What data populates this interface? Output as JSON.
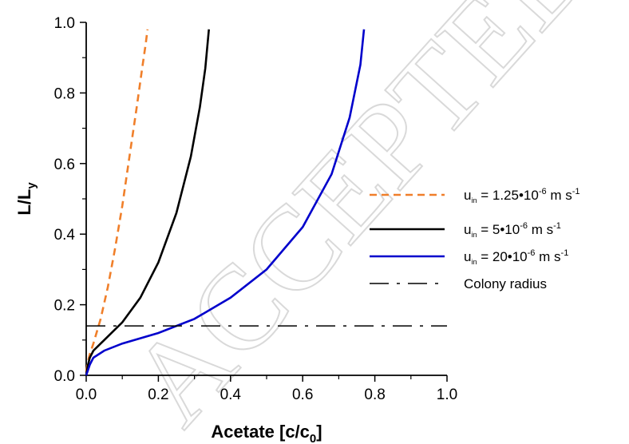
{
  "chart_data": {
    "type": "line",
    "xlabel": "Acetate [c/c0]",
    "ylabel": "L/Ly",
    "xlim": [
      0.0,
      1.0
    ],
    "ylim": [
      0.0,
      1.0
    ],
    "xticks": [
      "0.0",
      "0.2",
      "0.4",
      "0.6",
      "0.8",
      "1.0"
    ],
    "yticks": [
      "0.0",
      "0.2",
      "0.4",
      "0.6",
      "0.8",
      "1.0"
    ],
    "grid": false,
    "legend_position": "right",
    "series": [
      {
        "name": "u_in = 1.25•10^-6 m s^-1",
        "legend": {
          "base": "u",
          "sub": "in",
          "pre": " = 1.25•10",
          "exp1": "-6",
          "mid": " m s",
          "exp2": "-1"
        },
        "color": "#f07f2a",
        "style": "dashed",
        "x": [
          0.0,
          0.005,
          0.01,
          0.02,
          0.04,
          0.06,
          0.08,
          0.1,
          0.12,
          0.14,
          0.155,
          0.165,
          0.17
        ],
        "y": [
          0.01,
          0.04,
          0.06,
          0.09,
          0.16,
          0.25,
          0.36,
          0.48,
          0.62,
          0.76,
          0.87,
          0.94,
          0.98
        ]
      },
      {
        "name": "u_in = 5•10^-6 m s^-1",
        "legend": {
          "base": "u",
          "sub": "in",
          "pre": " = 5•10",
          "exp1": "-6",
          "mid": " m s",
          "exp2": "-1"
        },
        "color": "#000000",
        "style": "solid",
        "x": [
          0.0,
          0.005,
          0.01,
          0.02,
          0.05,
          0.1,
          0.15,
          0.2,
          0.25,
          0.29,
          0.315,
          0.33,
          0.34
        ],
        "y": [
          0.0,
          0.03,
          0.05,
          0.07,
          0.1,
          0.15,
          0.22,
          0.32,
          0.46,
          0.62,
          0.76,
          0.87,
          0.98
        ]
      },
      {
        "name": "u_in = 20•10^-6 m s^-1",
        "legend": {
          "base": "u",
          "sub": "in",
          "pre": " = 20•10",
          "exp1": "-6",
          "mid": " m s",
          "exp2": "-1"
        },
        "color": "#0000cc",
        "style": "solid",
        "x": [
          0.0,
          0.01,
          0.02,
          0.05,
          0.1,
          0.2,
          0.3,
          0.4,
          0.5,
          0.6,
          0.68,
          0.73,
          0.76,
          0.77
        ],
        "y": [
          0.0,
          0.03,
          0.05,
          0.07,
          0.09,
          0.12,
          0.16,
          0.22,
          0.3,
          0.42,
          0.57,
          0.73,
          0.88,
          0.98
        ]
      },
      {
        "name": "Colony radius",
        "legend": {
          "base": "Colony radius"
        },
        "color": "#000000",
        "style": "dashdot",
        "x": [
          0.0,
          1.0
        ],
        "y": [
          0.14,
          0.14
        ]
      }
    ]
  },
  "watermark": "ACCEPTED MANUSCRIPT"
}
